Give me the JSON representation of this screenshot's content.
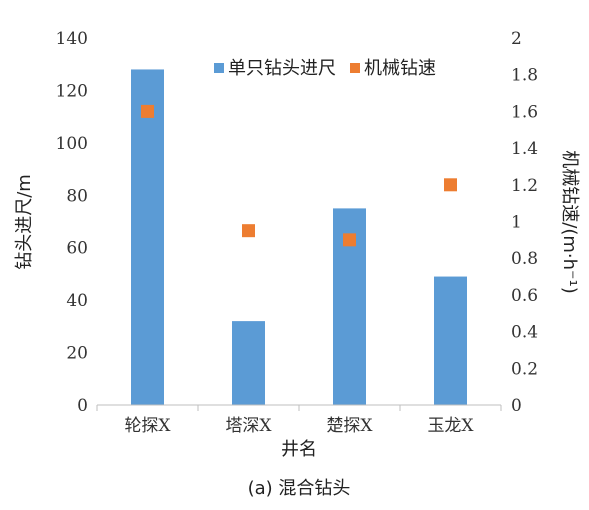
{
  "chart_data": {
    "type": "bar",
    "categories": [
      "轮探X",
      "塔深X",
      "楚探X",
      "玉龙X"
    ],
    "series": [
      {
        "name": "单只钻头进尺",
        "axis": "left",
        "kind": "bar",
        "color": "#5b9bd5",
        "values": [
          128,
          32,
          75,
          49
        ]
      },
      {
        "name": "机械钻速",
        "axis": "right",
        "kind": "scatter",
        "color": "#ed7d31",
        "values": [
          1.6,
          0.95,
          0.9,
          1.2
        ]
      }
    ],
    "xlabel": "井名",
    "ylabel": "钻头进尺/m",
    "y2label": "机械钻速/(m·h⁻¹)",
    "ylim": [
      0,
      140
    ],
    "y2lim": [
      0,
      2
    ],
    "yticks": [
      "0",
      "20",
      "40",
      "60",
      "80",
      "100",
      "120",
      "140"
    ],
    "y2ticks": [
      "0",
      "0.2",
      "0.4",
      "0.6",
      "0.8",
      "1",
      "1.2",
      "1.4",
      "1.6",
      "1.8",
      "2"
    ],
    "grid": false,
    "legend_position": "top-right"
  },
  "caption": "(a) 混合钻头"
}
